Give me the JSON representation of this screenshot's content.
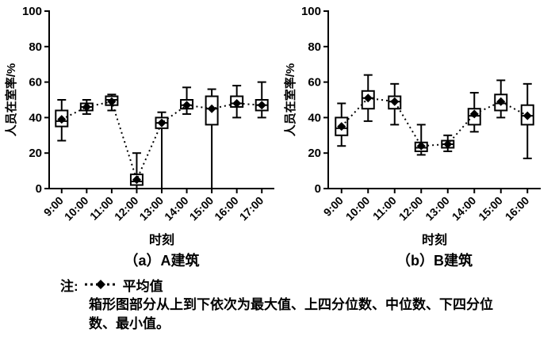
{
  "note": {
    "prefix": "注:",
    "legend_symbol": "··◆··",
    "legend_label": "平均值",
    "description": "箱形图部分从上到下依次为最大值、上四分位数、中位数、下四分位数、最小值。"
  },
  "chart_data": [
    {
      "type": "boxplot",
      "title": "（a）A建筑",
      "xlabel": "时刻",
      "ylabel": "人员在室率/%",
      "ylim": [
        0,
        100
      ],
      "yticks": [
        0,
        20,
        40,
        60,
        80,
        100
      ],
      "grid": false,
      "categories": [
        "9:00",
        "10:00",
        "11:00",
        "12:00",
        "13:00",
        "14:00",
        "15:00",
        "16:00",
        "17:00"
      ],
      "series": [
        {
          "name": "平均值",
          "values": [
            39,
            46,
            49,
            5,
            37,
            47,
            45,
            48,
            47
          ]
        }
      ],
      "boxes": [
        {
          "min": 27,
          "q1": 35,
          "median": 38,
          "q3": 44,
          "max": 50
        },
        {
          "min": 42,
          "q1": 44,
          "median": 46,
          "q3": 48,
          "max": 50
        },
        {
          "min": 44,
          "q1": 47,
          "median": 50,
          "q3": 52,
          "max": 53
        },
        {
          "min": 0,
          "q1": 2,
          "median": 4,
          "q3": 8,
          "max": 20
        },
        {
          "min": 0,
          "q1": 34,
          "median": 37,
          "q3": 40,
          "max": 43
        },
        {
          "min": 42,
          "q1": 45,
          "median": 47,
          "q3": 50,
          "max": 57
        },
        {
          "min": 0,
          "q1": 36,
          "median": 45,
          "q3": 52,
          "max": 56
        },
        {
          "min": 40,
          "q1": 46,
          "median": 48,
          "q3": 52,
          "max": 58
        },
        {
          "min": 40,
          "q1": 44,
          "median": 47,
          "q3": 50,
          "max": 60
        }
      ]
    },
    {
      "type": "boxplot",
      "title": "（b）B建筑",
      "xlabel": "时刻",
      "ylabel": "人员在室率/%",
      "ylim": [
        0,
        100
      ],
      "yticks": [
        0,
        20,
        40,
        60,
        80,
        100
      ],
      "grid": false,
      "categories": [
        "9:00",
        "10:00",
        "11:00",
        "12:00",
        "13:00",
        "14:00",
        "15:00",
        "16:00"
      ],
      "series": [
        {
          "name": "平均值",
          "values": [
            35,
            51,
            49,
            24,
            25,
            42,
            49,
            41
          ]
        }
      ],
      "boxes": [
        {
          "min": 24,
          "q1": 30,
          "median": 34,
          "q3": 40,
          "max": 48
        },
        {
          "min": 38,
          "q1": 45,
          "median": 51,
          "q3": 55,
          "max": 64
        },
        {
          "min": 36,
          "q1": 45,
          "median": 49,
          "q3": 52,
          "max": 59
        },
        {
          "min": 19,
          "q1": 21,
          "median": 23,
          "q3": 26,
          "max": 36
        },
        {
          "min": 21,
          "q1": 23,
          "median": 25,
          "q3": 27,
          "max": 30
        },
        {
          "min": 32,
          "q1": 36,
          "median": 41,
          "q3": 45,
          "max": 54
        },
        {
          "min": 40,
          "q1": 44,
          "median": 48,
          "q3": 53,
          "max": 61
        },
        {
          "min": 17,
          "q1": 36,
          "median": 41,
          "q3": 47,
          "max": 59
        }
      ]
    }
  ]
}
